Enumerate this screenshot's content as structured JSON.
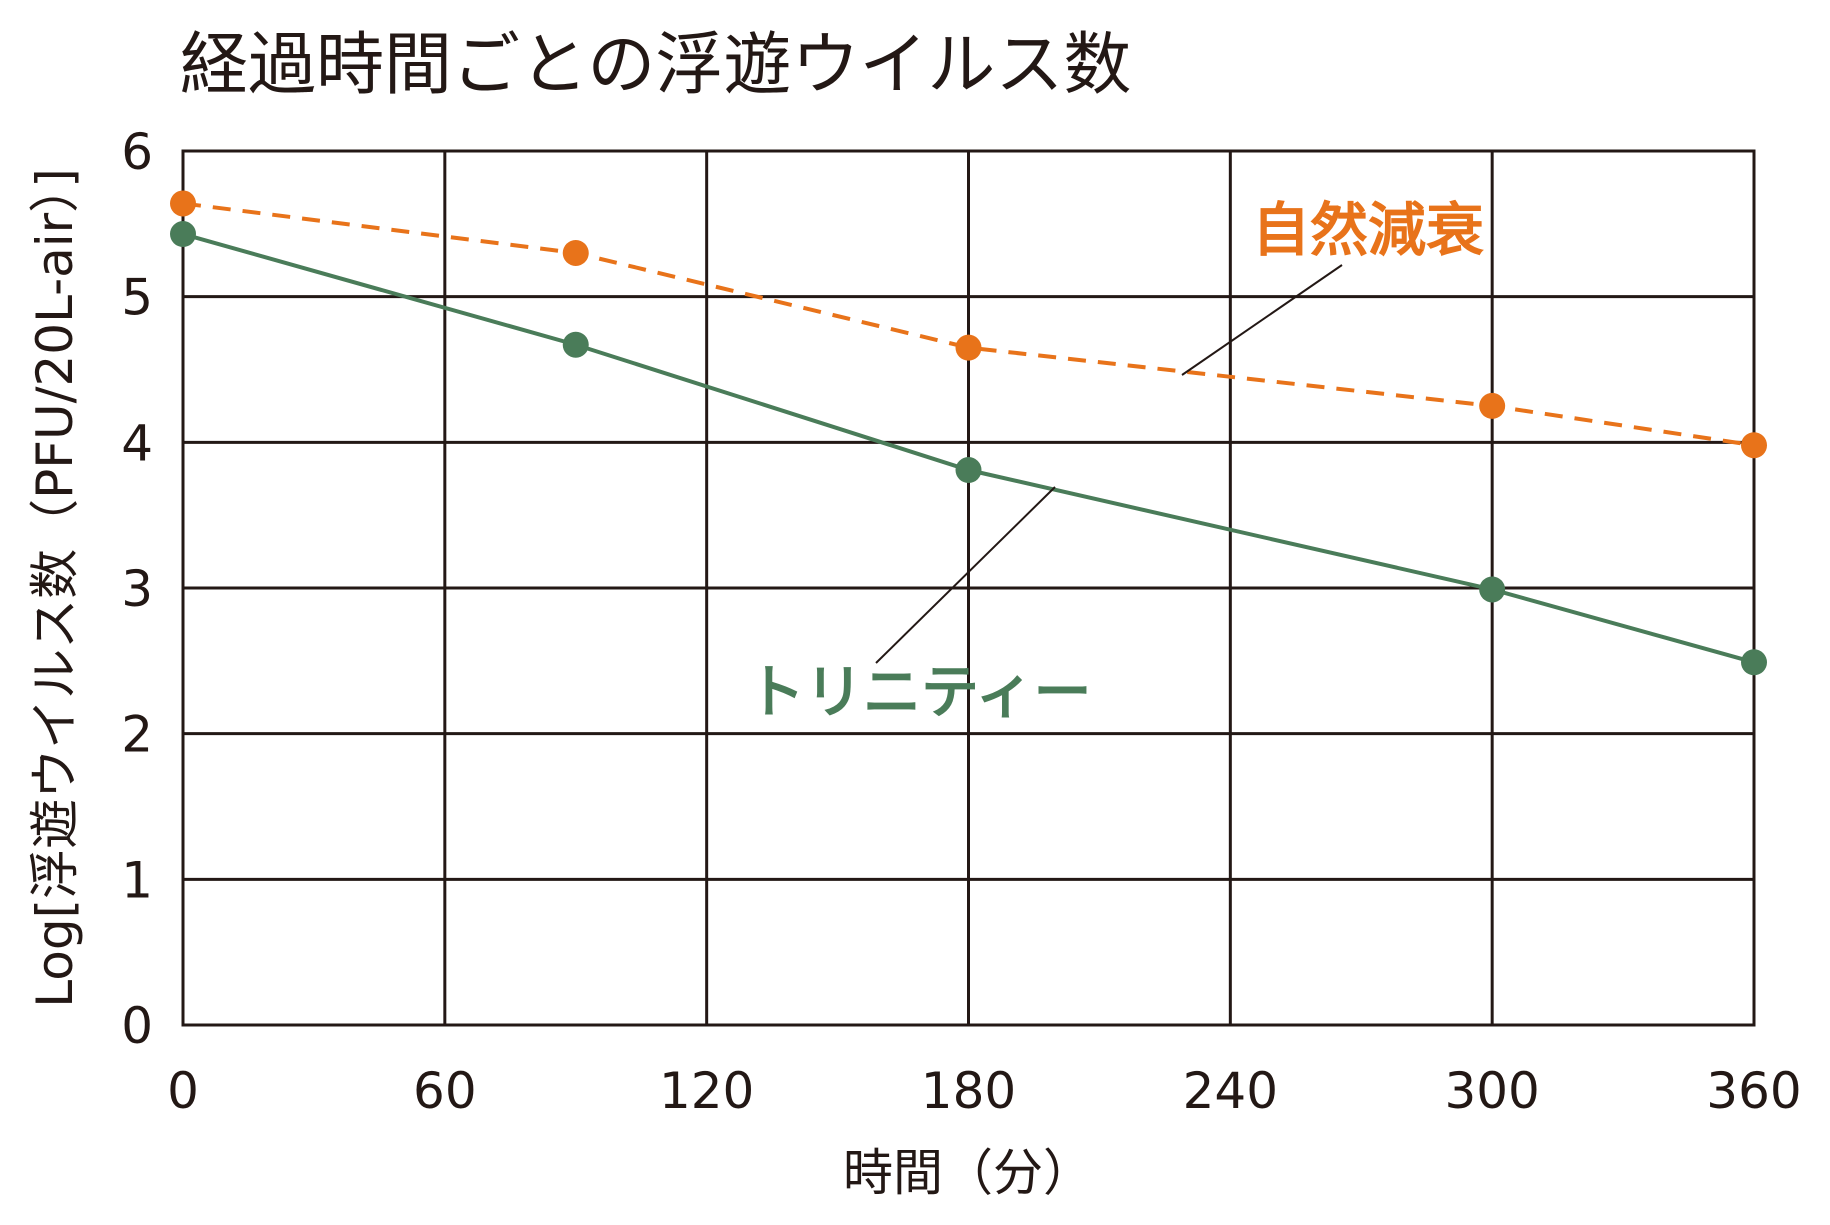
{
  "chart_data": {
    "type": "line",
    "title": "経過時間ごとの浮遊ウイルス数",
    "xlabel": "時間（分）",
    "ylabel": "Log[浮遊ウイルス数（PFU/20L-air）]",
    "xlim": [
      0,
      360
    ],
    "ylim": [
      0,
      6
    ],
    "x_ticks": [
      0,
      60,
      120,
      180,
      240,
      300,
      360
    ],
    "y_ticks": [
      0,
      1,
      2,
      3,
      4,
      5,
      6
    ],
    "grid": true,
    "series": [
      {
        "name": "自然減衰",
        "color": "#e8731a",
        "line_style": "dashed",
        "points": [
          {
            "x": 0,
            "y": 5.64
          },
          {
            "x": 90,
            "y": 5.3
          },
          {
            "x": 180,
            "y": 4.65
          },
          {
            "x": 300,
            "y": 4.25
          },
          {
            "x": 360,
            "y": 3.98
          }
        ]
      },
      {
        "name": "トリニティー",
        "color": "#4a7c59",
        "line_style": "solid",
        "points": [
          {
            "x": 0,
            "y": 5.43
          },
          {
            "x": 90,
            "y": 4.67
          },
          {
            "x": 180,
            "y": 3.81
          },
          {
            "x": 300,
            "y": 2.99
          },
          {
            "x": 360,
            "y": 2.49
          }
        ]
      }
    ]
  }
}
